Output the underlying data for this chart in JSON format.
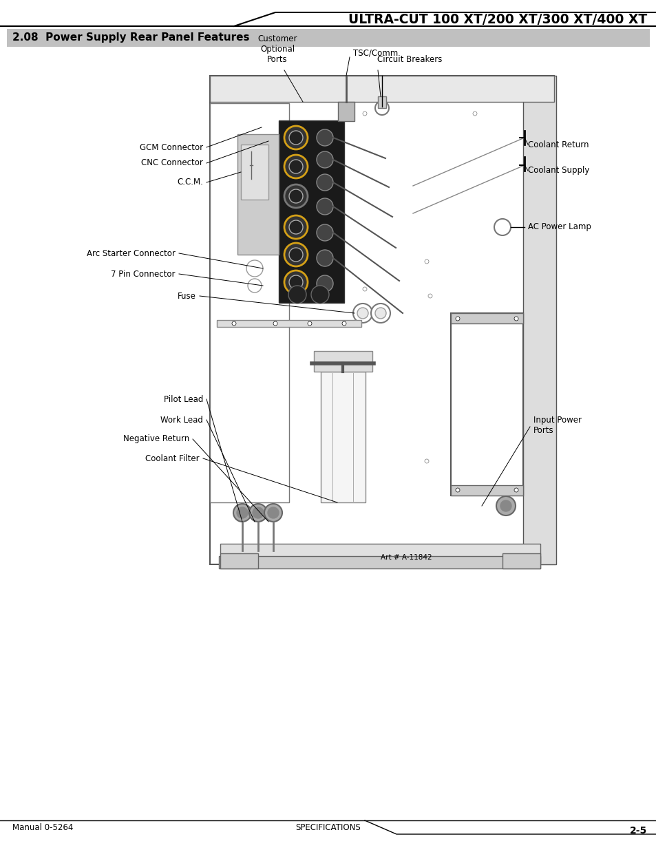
{
  "bg_color": "#ffffff",
  "page_width": 9.54,
  "page_height": 12.35,
  "title_text": "ULTRA-CUT 100 XT/200 XT/300 XT/400 XT",
  "section_title": "2.08  Power Supply Rear Panel Features",
  "section_bg": "#c0c0c0",
  "footer_left": "Manual 0-5264",
  "footer_center": "SPECIFICATIONS",
  "footer_right": "2-5",
  "art_number": "Art # A-11842"
}
